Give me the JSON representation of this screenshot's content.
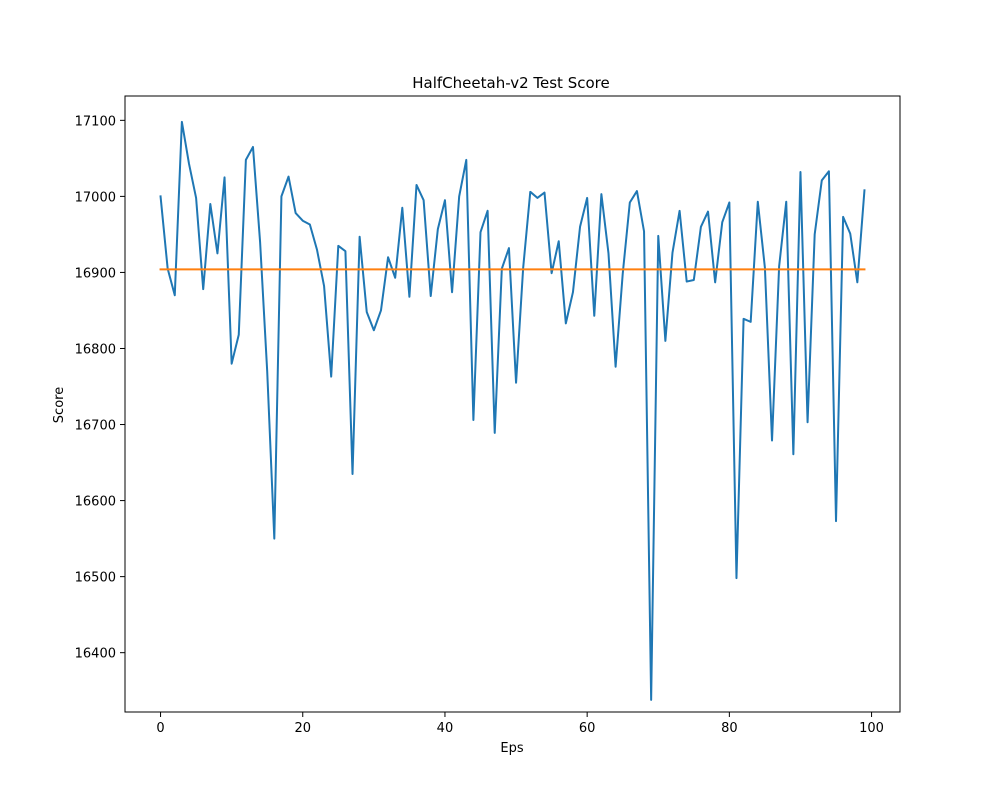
{
  "chart_data": {
    "type": "line",
    "title": "HalfCheetah-v2 Test Score",
    "xlabel": "Eps",
    "ylabel": "Score",
    "xlim": [
      -5,
      104
    ],
    "ylim": [
      16322,
      17132
    ],
    "xticks": [
      0,
      20,
      40,
      60,
      80,
      100
    ],
    "yticks": [
      16400,
      16500,
      16600,
      16700,
      16800,
      16900,
      17000,
      17100
    ],
    "grid": false,
    "series": [
      {
        "color": "#1f77b4",
        "x": [
          0,
          1,
          2,
          3,
          4,
          5,
          6,
          7,
          8,
          9,
          10,
          11,
          12,
          13,
          14,
          15,
          16,
          17,
          18,
          19,
          20,
          21,
          22,
          23,
          24,
          25,
          26,
          27,
          28,
          29,
          30,
          31,
          32,
          33,
          34,
          35,
          36,
          37,
          38,
          39,
          40,
          41,
          42,
          43,
          44,
          45,
          46,
          47,
          48,
          49,
          50,
          51,
          52,
          53,
          54,
          55,
          56,
          57,
          58,
          59,
          60,
          61,
          62,
          63,
          64,
          65,
          66,
          67,
          68,
          69,
          70,
          71,
          72,
          73,
          74,
          75,
          76,
          77,
          78,
          79,
          80,
          81,
          82,
          83,
          84,
          85,
          86,
          87,
          88,
          89,
          90,
          91,
          92,
          93,
          94,
          95,
          96,
          97,
          98,
          99
        ],
        "values": [
          17000,
          16905,
          16870,
          17098,
          17043,
          16998,
          16878,
          16990,
          16925,
          17025,
          16780,
          16818,
          17048,
          17065,
          16940,
          16770,
          16550,
          17000,
          17026,
          16978,
          16968,
          16963,
          16930,
          16882,
          16763,
          16935,
          16928,
          16635,
          16947,
          16848,
          16824,
          16850,
          16920,
          16893,
          16985,
          16868,
          17015,
          16995,
          16869,
          16957,
          16995,
          16874,
          17000,
          17048,
          16706,
          16953,
          16981,
          16689,
          16905,
          16932,
          16755,
          16906,
          17006,
          16998,
          17005,
          16899,
          16941,
          16833,
          16874,
          16960,
          16998,
          16843,
          17003,
          16925,
          16776,
          16898,
          16992,
          17007,
          16954,
          16338,
          16948,
          16810,
          16926,
          16981,
          16888,
          16890,
          16960,
          16980,
          16887,
          16966,
          16992,
          16498,
          16839,
          16835,
          16993,
          16906,
          16679,
          16908,
          16993,
          16661,
          17032,
          16703,
          16950,
          17021,
          17033,
          16573,
          16973,
          16951,
          16887,
          17008
        ]
      },
      {
        "color": "#ff7f0e",
        "x": [
          0,
          99
        ],
        "values": [
          16904,
          16904
        ]
      }
    ]
  }
}
